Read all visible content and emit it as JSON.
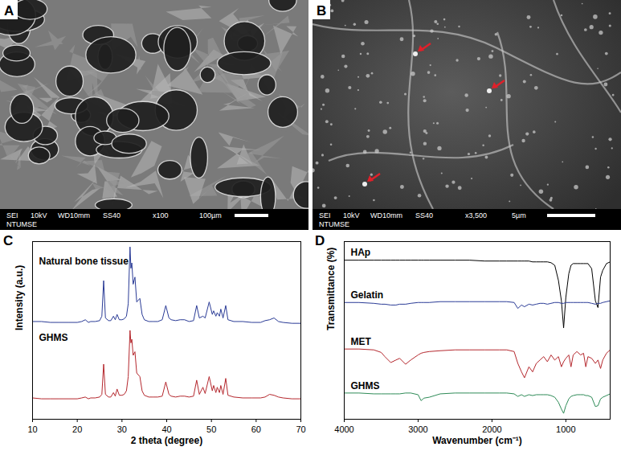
{
  "images": [
    {
      "panel": "A",
      "detector": "SEI",
      "voltage": "10kV",
      "working_distance": "WD10mm",
      "spot_size": "SS40",
      "magnification": "x100",
      "scale_bar": "100µm",
      "institution": "NTUMSE"
    },
    {
      "panel": "B",
      "detector": "SEI",
      "voltage": "10kV",
      "working_distance": "WD10mm",
      "spot_size": "SS40",
      "magnification": "x3,500",
      "scale_bar": "5µm",
      "institution": "NTUMSE"
    }
  ],
  "chart_data": [
    {
      "type": "line",
      "panel": "C",
      "xlabel": "2 theta (degree)",
      "ylabel": "Intensity (a.u.)",
      "x": [
        10,
        12,
        14,
        16,
        18,
        20,
        21,
        21.8,
        22.5,
        23,
        24,
        25,
        25.5,
        25.9,
        26.3,
        27,
        27.5,
        28.1,
        28.5,
        28.9,
        29.4,
        30,
        30.5,
        31,
        31.4,
        31.8,
        32.0,
        32.2,
        32.5,
        32.9,
        33.3,
        34.0,
        34.5,
        35,
        36,
        37,
        38,
        39,
        39.8,
        40.5,
        41,
        42,
        43,
        44,
        45,
        46,
        46.7,
        47.3,
        48.1,
        48.6,
        49.5,
        50.2,
        50.5,
        51.0,
        51.3,
        51.8,
        52.1,
        52.6,
        53.2,
        53.7,
        55,
        57,
        59,
        61,
        62,
        63,
        64,
        65,
        66,
        68,
        70
      ],
      "series": [
        {
          "name": "Natural bone tissue",
          "color": "#2a3b96",
          "values": [
            55,
            55,
            54.5,
            54.5,
            54.5,
            54.5,
            55,
            56,
            54.5,
            55,
            55,
            55.5,
            58,
            78,
            57,
            55.5,
            55.5,
            58,
            56,
            59,
            56,
            56,
            56.5,
            58,
            65,
            97,
            85,
            88,
            76,
            80,
            66,
            68,
            59,
            56,
            55,
            55,
            55,
            56,
            64,
            57,
            56,
            55.5,
            56,
            56,
            55,
            55.5,
            64,
            57,
            58,
            57,
            66,
            59,
            61,
            58,
            60,
            58,
            62,
            57,
            64,
            56,
            55,
            55,
            54.5,
            54.5,
            55.5,
            56,
            57,
            55,
            54.5,
            54,
            54
          ]
        },
        {
          "name": "GHMS",
          "color": "#b5282e",
          "values": [
            12,
            11.5,
            11.5,
            11.5,
            11.5,
            11.5,
            12,
            12.5,
            11.5,
            12,
            12,
            12.5,
            14,
            31,
            14,
            12.5,
            12.5,
            15,
            13,
            17,
            13.5,
            13.5,
            14,
            16,
            24,
            50,
            43,
            45,
            36,
            38,
            26,
            24,
            16,
            13.5,
            12.5,
            12.5,
            12.5,
            13,
            21,
            14,
            13,
            12.5,
            13,
            13,
            12.5,
            13,
            22,
            14,
            18,
            14.5,
            24,
            16,
            19,
            15,
            18,
            15,
            19,
            14,
            23,
            13.5,
            12.5,
            12,
            12,
            12,
            12.5,
            14,
            13.5,
            12.5,
            12,
            11.5,
            11.5
          ]
        }
      ],
      "xlim": [
        10,
        70
      ],
      "xticks": [
        10,
        20,
        30,
        40,
        50,
        60,
        70
      ],
      "ylim": [
        0,
        100
      ],
      "yticks": [],
      "tick_labels": "x"
    },
    {
      "type": "line",
      "panel": "D",
      "xlabel": "Wavenumber (cm⁻¹)",
      "ylabel": "Transmittance (%)",
      "x": [
        4000,
        3800,
        3600,
        3500,
        3450,
        3370,
        3300,
        3250,
        3170,
        3100,
        3000,
        2960,
        2920,
        2850,
        2700,
        2500,
        2300,
        2100,
        1900,
        1800,
        1700,
        1650,
        1600,
        1560,
        1500,
        1450,
        1400,
        1350,
        1300,
        1250,
        1200,
        1150,
        1100,
        1060,
        1030,
        1000,
        960,
        930,
        900,
        850,
        800,
        760,
        730,
        700,
        650,
        600,
        565,
        530,
        500,
        450,
        400
      ],
      "series": [
        {
          "name": "HAp",
          "color": "#000000",
          "values": [
            94,
            94,
            94,
            94,
            94,
            94,
            94,
            94,
            94,
            94,
            94,
            94,
            94,
            94,
            94,
            94,
            94,
            93.5,
            93.5,
            93.5,
            93.5,
            93.5,
            93.5,
            93.5,
            93.5,
            93,
            93,
            93,
            93,
            93,
            92.5,
            91,
            82,
            70,
            54,
            72,
            86,
            91,
            92,
            92,
            92,
            92,
            92,
            92,
            89,
            70,
            66,
            84,
            88,
            92,
            93
          ]
        },
        {
          "name": "Gelatin",
          "color": "#2a3b96",
          "values": [
            69,
            69,
            68.5,
            68,
            68,
            67.5,
            67.5,
            68,
            68,
            68.5,
            69,
            69,
            69,
            69,
            69.5,
            69.5,
            69.5,
            69.5,
            69.5,
            69.5,
            69,
            65.5,
            67.5,
            66.5,
            68,
            67.5,
            68,
            68.5,
            68.5,
            68,
            68.5,
            69,
            69,
            68.5,
            68.5,
            69,
            69,
            69,
            69,
            69,
            69,
            69,
            69,
            69,
            68.5,
            68,
            68.5,
            68.5,
            69,
            69.5,
            70
          ]
        },
        {
          "name": "MET",
          "color": "#b5282e",
          "values": [
            41.5,
            41.5,
            41,
            39.5,
            37,
            33.5,
            35,
            36,
            32.5,
            35,
            38,
            39,
            39.5,
            40,
            40.5,
            41,
            41,
            41,
            41,
            41,
            40,
            33,
            28,
            24.5,
            31,
            28,
            33,
            35,
            37,
            34,
            38,
            35,
            37,
            31,
            34,
            36,
            38,
            31,
            38,
            40,
            38,
            39,
            31,
            37,
            36,
            33,
            35,
            30,
            35,
            39,
            41
          ]
        },
        {
          "name": "GHMS",
          "color": "#2e8b57",
          "values": [
            15.5,
            15.5,
            15,
            15,
            15,
            15,
            15,
            15,
            15.5,
            15.5,
            14.5,
            11,
            12.5,
            13,
            15,
            15.5,
            15.5,
            15.5,
            15.5,
            15.5,
            15,
            13.5,
            14.5,
            13.5,
            14.5,
            14,
            14.5,
            14.5,
            14.5,
            14.5,
            14,
            13,
            10,
            6,
            3.5,
            8,
            12,
            13.5,
            14,
            14.5,
            14.5,
            14.5,
            14,
            14,
            13,
            7.5,
            8,
            12,
            13,
            14,
            15
          ]
        }
      ],
      "xlim": [
        4000,
        400
      ],
      "xticks": [
        4000,
        3000,
        2000,
        1000
      ],
      "ylim": [
        0,
        105
      ],
      "yticks": [],
      "tick_labels": "x"
    }
  ]
}
